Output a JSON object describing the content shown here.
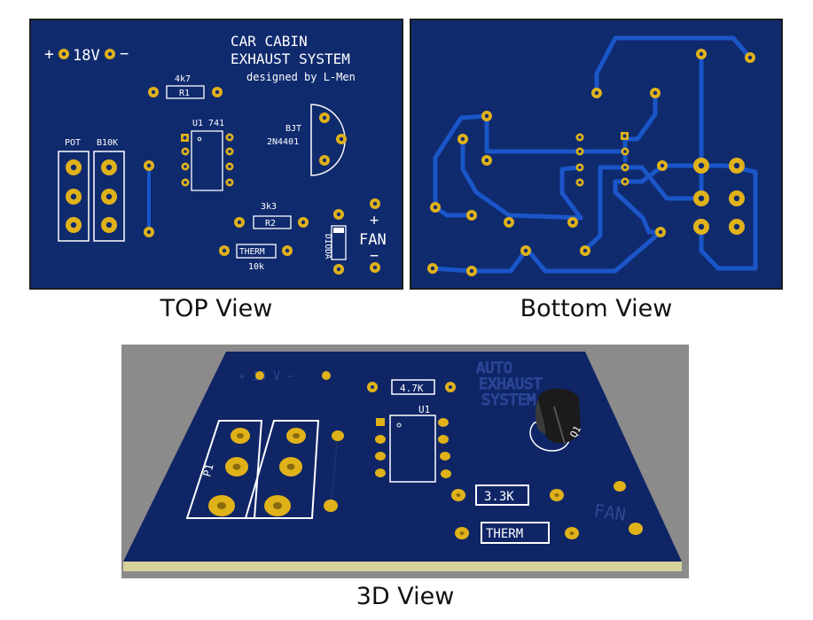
{
  "top": {
    "caption": "TOP View",
    "power_plus": "+",
    "power_voltage": "18V",
    "power_minus": "−",
    "title_line1": "CAR CABIN",
    "title_line2": "EXHAUST SYSTEM",
    "designer": "designed by L-Men",
    "r1_value": "4k7",
    "r1_label": "R1",
    "u1_label": "U1 741",
    "bjt_label": "BJT",
    "bjt_part": "2N4401",
    "pot_label": "POT",
    "pot_value": "B10K",
    "r2_value": "3k3",
    "r2_label": "R2",
    "dioda_label": "DIODA",
    "fan_plus": "+",
    "fan_label": "FAN",
    "fan_minus": "−",
    "therm_label": "THERM",
    "therm_value": "10k"
  },
  "bottom": {
    "caption": "Bottom View"
  },
  "view3d": {
    "caption": "3D View",
    "r1_value": "4.7K",
    "u1_label": "U1",
    "q1_label": "Q1",
    "p1_label": "P1",
    "r2_value": "3.3K",
    "therm_label": "THERM",
    "fan_label": "FAN",
    "power_label": "+ 18 V −",
    "ghost_line1": "AUTO",
    "ghost_line2": "EXHAUST",
    "ghost_line3": "SYSTEM"
  },
  "colors": {
    "board": "#102a6e",
    "board_3d": "#0f2566",
    "trace": "#1a56c8",
    "pad": "#e0b21a",
    "silk": "#ffffff",
    "frame": "#1d1d1d",
    "backdrop_3d": "#8b8b8b",
    "board_edge": "#d8d39a"
  }
}
